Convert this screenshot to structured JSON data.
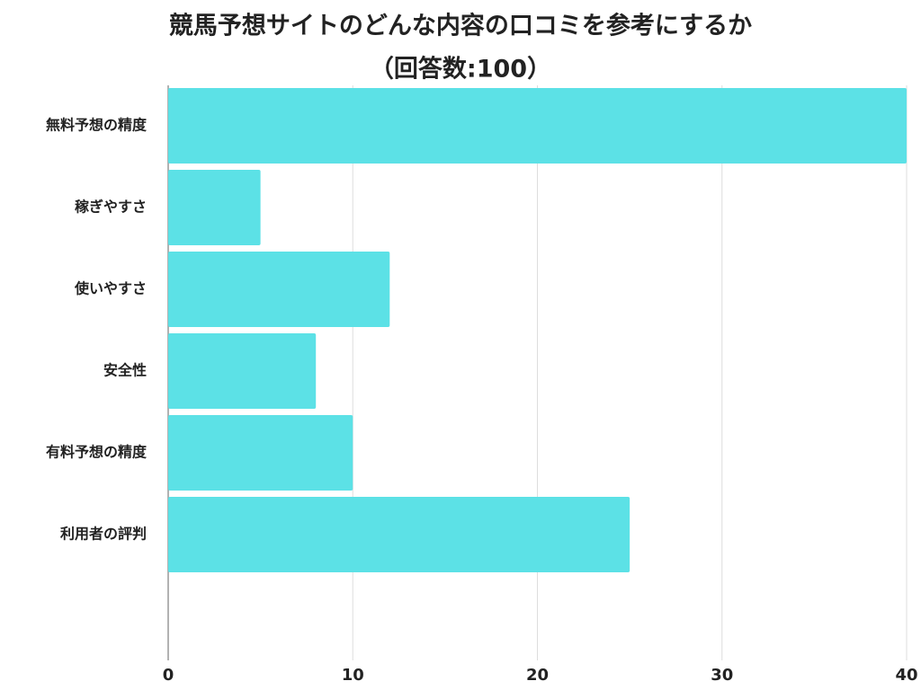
{
  "chart_data": {
    "type": "bar",
    "orientation": "horizontal",
    "title": "競馬予想サイトのどんな内容の口コミを参考にするか",
    "subtitle": "（回答数:100）",
    "categories": [
      "無料予想の精度",
      "稼ぎやすさ",
      "使いやすさ",
      "安全性",
      "有料予想の精度",
      "利用者の評判"
    ],
    "values": [
      40,
      5,
      12,
      8,
      10,
      25
    ],
    "color": "#5ce1e6",
    "xlim": [
      0,
      40
    ],
    "xticks": [
      0,
      10,
      20,
      30,
      40
    ],
    "grid": true
  }
}
